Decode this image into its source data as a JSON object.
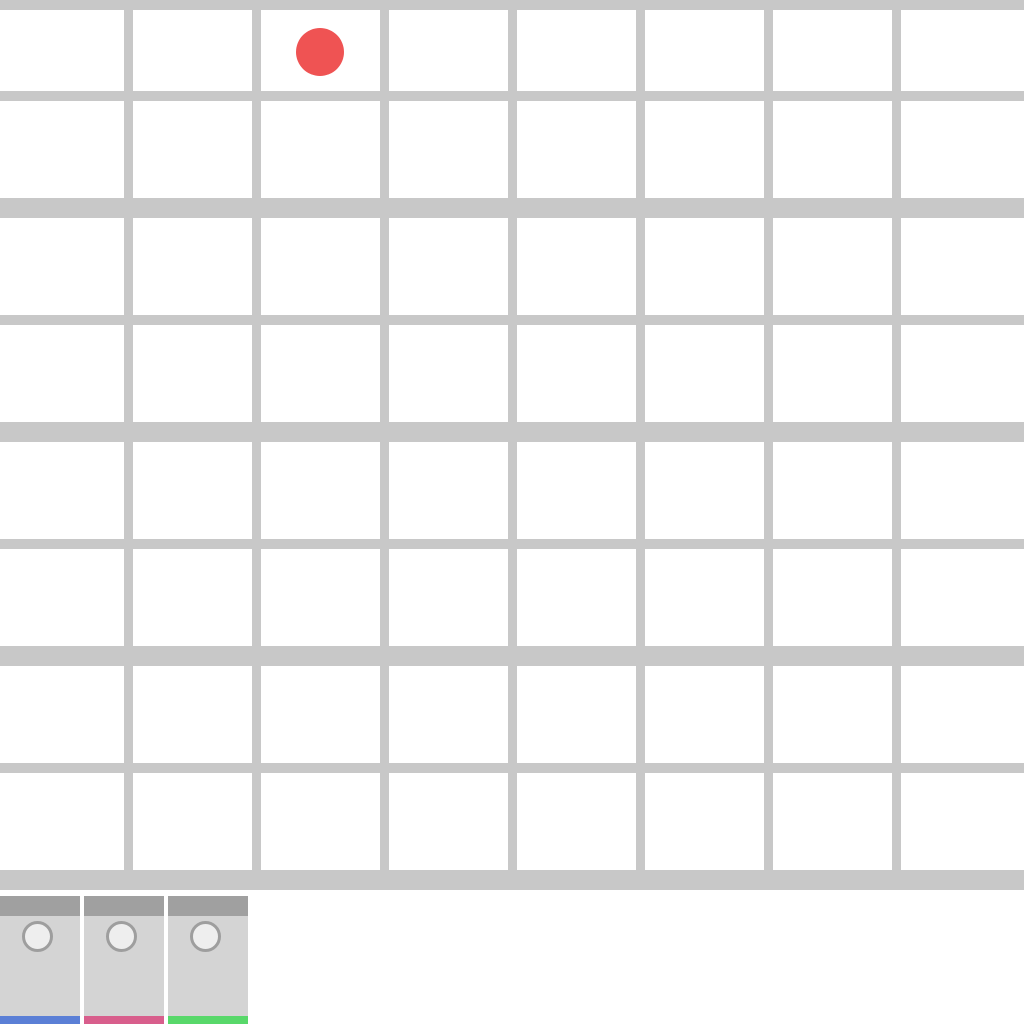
{
  "board": {
    "rows": 8,
    "columns": 8,
    "line_color": "#c8c8c8",
    "background": "#ffffff"
  },
  "token": {
    "color": "#ef5353",
    "row": 0,
    "column": 2
  },
  "cards": [
    {
      "stripe_color": "#5b7fd6",
      "header_color": "#a0a0a0"
    },
    {
      "stripe_color": "#d85e8c",
      "header_color": "#a0a0a0"
    },
    {
      "stripe_color": "#58d86a",
      "header_color": "#a0a0a0"
    }
  ]
}
